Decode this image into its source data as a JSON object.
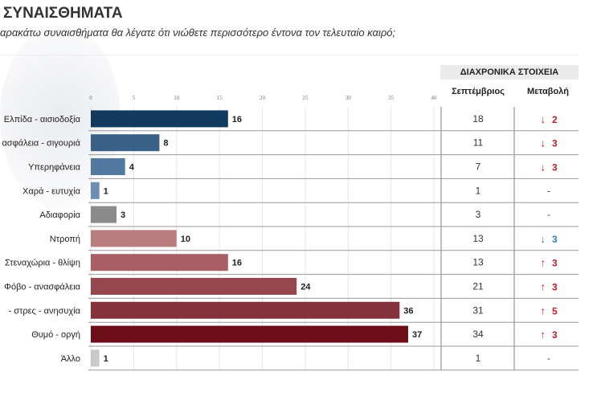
{
  "header": {
    "title": "ΣΥΝΑΙΣΘΗΜΑΤΑ",
    "subtitle": "αρακάτω συναισθήματα θα λέγατε ότι νιώθετε περισσότερο έντονα τον τελευταίο καιρό;"
  },
  "table": {
    "title": "ΔΙΑΧΡΟΝΙΚΑ ΣΤΟΙΧΕΙΑ",
    "col_previous": "Σεπτέμβριος",
    "col_change": "Μεταβολή"
  },
  "colors": {
    "up": "#c0202a",
    "down_red": "#c0202a",
    "down_blue": "#2a7fc0"
  },
  "chart_data": {
    "type": "bar",
    "orientation": "horizontal",
    "xlim": [
      0,
      40
    ],
    "xticks": [
      0,
      5,
      10,
      15,
      20,
      25,
      30,
      35,
      40
    ],
    "grid": true,
    "categories": [
      "Ελπίδα - αισιοδοξία",
      "ασφάλεια - σιγουριά",
      "Υπερηφάνεια",
      "Χαρά - ευτυχία",
      "Αδιαφορία",
      "Ντροπή",
      "Στεναχώρια - θλίψη",
      "Φόβο - ανασφάλεια",
      "- στρες - ανησυχία",
      "Θυμό - οργή",
      "Άλλο"
    ],
    "values": [
      16,
      8,
      4,
      1,
      3,
      10,
      16,
      24,
      36,
      37,
      1
    ],
    "bar_colors": [
      "#123a5e",
      "#3b6088",
      "#527aa0",
      "#6d8db2",
      "#8a8a8a",
      "#b97d80",
      "#a85e64",
      "#96464d",
      "#86323c",
      "#6c0d17",
      "#c9c9c9"
    ],
    "previous": [
      "18",
      "11",
      "7",
      "1",
      "3",
      "13",
      "13",
      "21",
      "31",
      "34",
      "1"
    ],
    "change": [
      {
        "dir": "down",
        "value": "2",
        "color": "red"
      },
      {
        "dir": "down",
        "value": "3",
        "color": "red"
      },
      {
        "dir": "down",
        "value": "3",
        "color": "red"
      },
      {
        "dir": "none",
        "value": "-"
      },
      {
        "dir": "none",
        "value": "-"
      },
      {
        "dir": "down",
        "value": "3",
        "color": "blue"
      },
      {
        "dir": "up",
        "value": "3",
        "color": "red"
      },
      {
        "dir": "up",
        "value": "3",
        "color": "red"
      },
      {
        "dir": "up",
        "value": "5",
        "color": "red"
      },
      {
        "dir": "up",
        "value": "3",
        "color": "red"
      },
      {
        "dir": "none",
        "value": "-"
      }
    ]
  }
}
